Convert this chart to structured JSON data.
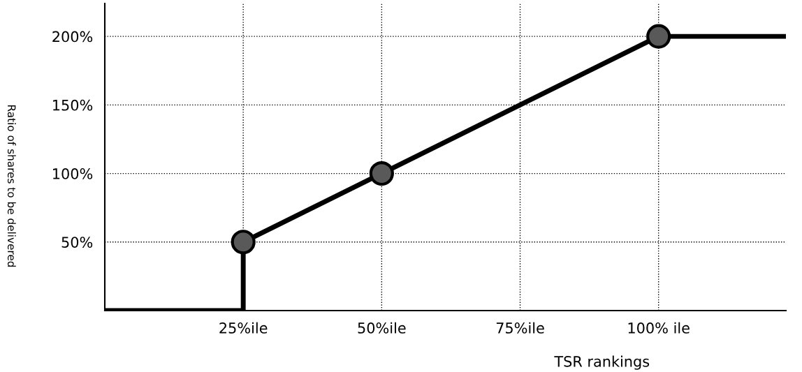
{
  "chart_data": {
    "type": "line",
    "xlabel": "TSR rankings",
    "ylabel": "Ratio of shares to be delivered",
    "xlim": [
      0,
      123
    ],
    "ylim": [
      0,
      224
    ],
    "xticks": [
      {
        "value": 25,
        "label": "25%ile"
      },
      {
        "value": 50,
        "label": "50%ile"
      },
      {
        "value": 75,
        "label": "75%ile"
      },
      {
        "value": 100,
        "label": "100% ile"
      }
    ],
    "yticks": [
      {
        "value": 50,
        "label": "50%"
      },
      {
        "value": 100,
        "label": "100%"
      },
      {
        "value": 150,
        "label": "150%"
      },
      {
        "value": 200,
        "label": "200%"
      }
    ],
    "grid": true,
    "series": [
      {
        "color": "#000000",
        "x": [
          0,
          25,
          25,
          50,
          100,
          123
        ],
        "values": [
          0,
          0,
          50,
          100,
          200,
          200
        ]
      },
      {
        "type": "scatter",
        "color": "#595959",
        "marker": "circle",
        "x": [
          25,
          50,
          100
        ],
        "values": [
          50,
          100,
          200
        ]
      }
    ]
  }
}
